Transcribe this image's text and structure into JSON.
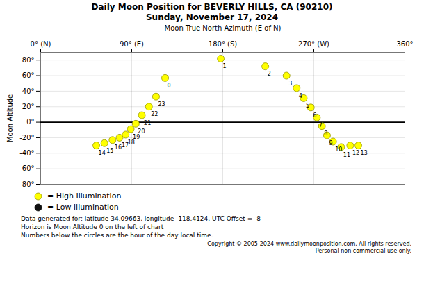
{
  "chart_data": {
    "type": "scatter",
    "title": "Daily Moon Position for BEVERLY HILLS, CA (90210)",
    "subtitle": "Sunday, November 17, 2024",
    "xlabel": "Moon True North Azimuth (E of N)",
    "ylabel": "Moon Altitude",
    "series": [
      {
        "name": "= High Illumination",
        "color": "#FFFF00",
        "x": [
          55,
          63,
          71,
          78,
          84,
          89,
          94,
          100,
          107,
          114,
          123,
          178,
          222,
          243,
          253,
          260,
          267,
          273,
          278,
          283,
          289,
          297,
          306,
          314
        ],
        "values": [
          -30,
          -27,
          -23,
          -20,
          -16,
          -9,
          -2,
          9,
          20,
          33,
          57,
          82,
          72,
          60,
          44,
          31,
          19,
          6,
          -5,
          -17,
          -25,
          -32,
          -30,
          -30
        ],
        "hours": [
          14,
          15,
          16,
          17,
          18,
          19,
          20,
          21,
          22,
          23,
          0,
          1,
          2,
          3,
          4,
          5,
          6,
          7,
          8,
          9,
          10,
          11,
          12,
          13
        ]
      },
      {
        "name": "= Low Illumination",
        "color": "#111111",
        "x": [],
        "values": [],
        "hours": []
      }
    ],
    "xlim": [
      0,
      360
    ],
    "xticks": [
      {
        "value": 0,
        "label": "0° (N)"
      },
      {
        "value": 90,
        "label": "90° (E)"
      },
      {
        "value": 180,
        "label": "180° (S)"
      },
      {
        "value": 270,
        "label": "270° (W)"
      },
      {
        "value": 360,
        "label": "360°"
      }
    ],
    "ylim": [
      -80,
      90
    ],
    "yticks": [
      {
        "value": -80,
        "label": "-80°"
      },
      {
        "value": -60,
        "label": "-60°"
      },
      {
        "value": -40,
        "label": "-40°"
      },
      {
        "value": -20,
        "label": "-20°"
      },
      {
        "value": 0,
        "label": "0°"
      },
      {
        "value": 20,
        "label": "20°"
      },
      {
        "value": 40,
        "label": "40°"
      },
      {
        "value": 60,
        "label": "60°"
      },
      {
        "value": 80,
        "label": "80°"
      }
    ],
    "grid": true,
    "legend": "lower left",
    "hline": 0,
    "annotations": [
      "Data generated for: latitude 34.09663, longitude -118.4124, UTC Offset = -8",
      "Horizon is Moon Altitude 0 on the left of chart",
      "Numbers below the circles are the hour of the day local time."
    ],
    "copyright": [
      "Copyright © 2005-2024 www.dailymoonposition.com, All rights reserved.",
      "Personal non commercial use only."
    ]
  }
}
